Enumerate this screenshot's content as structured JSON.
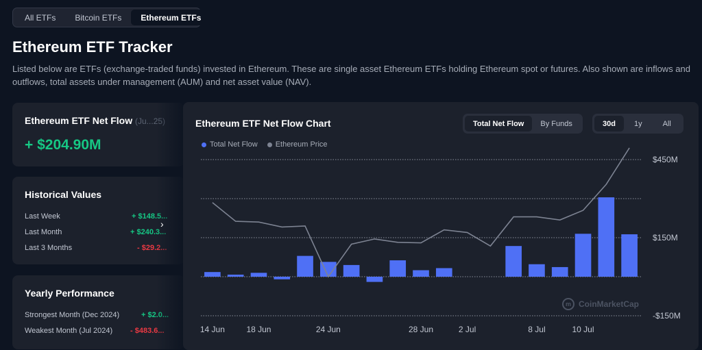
{
  "tabs": [
    {
      "label": "All ETFs",
      "active": false
    },
    {
      "label": "Bitcoin ETFs",
      "active": false
    },
    {
      "label": "Ethereum ETFs",
      "active": true
    }
  ],
  "page": {
    "title": "Ethereum ETF Tracker",
    "description": "Listed below are ETFs (exchange-traded funds) invested in Ethereum. These are single asset Ethereum ETFs holding Ethereum spot or futures. Also shown are inflows and outflows, total assets under management (AUM) and net asset value (NAV)."
  },
  "net_flow": {
    "title": "Ethereum ETF Net Flow",
    "date": "(Ju...25)",
    "value": "+ $204.90M"
  },
  "historical": {
    "title": "Historical Values",
    "rows": [
      {
        "label": "Last Week",
        "value": "+ $148.5...",
        "trend": "pos"
      },
      {
        "label": "Last Month",
        "value": "+ $240.3...",
        "trend": "pos"
      },
      {
        "label": "Last 3 Months",
        "value": "- $29.2...",
        "trend": "neg"
      }
    ]
  },
  "yearly": {
    "title": "Yearly Performance",
    "rows": [
      {
        "label": "Strongest Month (Dec 2024)",
        "value": "+ $2.0...",
        "trend": "pos"
      },
      {
        "label": "Weakest Month (Jul 2024)",
        "value": "- $483.6...",
        "trend": "neg"
      }
    ]
  },
  "chart": {
    "title": "Ethereum ETF Net Flow Chart",
    "view_toggle": [
      "Total Net Flow",
      "By Funds"
    ],
    "view_active": "Total Net Flow",
    "range_toggle": [
      "30d",
      "1y",
      "All"
    ],
    "range_active": "30d",
    "legend": [
      {
        "name": "Total Net Flow",
        "color": "#4f70f5"
      },
      {
        "name": "Ethereum Price",
        "color": "#7d8392"
      }
    ],
    "watermark": "CoinMarketCap"
  },
  "chart_data": {
    "type": "bar",
    "y_tick_labels": [
      "$450M",
      "$150M",
      "-$150M"
    ],
    "y_tick_values": [
      450,
      150,
      -150
    ],
    "ylim": [
      -150,
      450
    ],
    "x_tick_labels": [
      "14 Jun",
      "18 Jun",
      "24 Jun",
      "28 Jun",
      "2 Jul",
      "8 Jul",
      "10 Jul"
    ],
    "x_tick_index": [
      0,
      2,
      5,
      9,
      11,
      14,
      16
    ],
    "grid": true,
    "legend_position": "top-left",
    "series": [
      {
        "name": "Total Net Flow",
        "type": "bar",
        "color": "#4f70f5",
        "values": [
          18,
          8,
          15,
          -10,
          80,
          57,
          45,
          -20,
          63,
          25,
          33,
          0,
          0,
          118,
          48,
          37,
          165,
          305,
          163
        ]
      },
      {
        "name": "Ethereum Price",
        "type": "line",
        "color": "#7d8392",
        "values": [
          285,
          213,
          210,
          191,
          195,
          0,
          125,
          145,
          132,
          130,
          180,
          170,
          118,
          230,
          230,
          218,
          255,
          355,
          495
        ]
      }
    ]
  }
}
